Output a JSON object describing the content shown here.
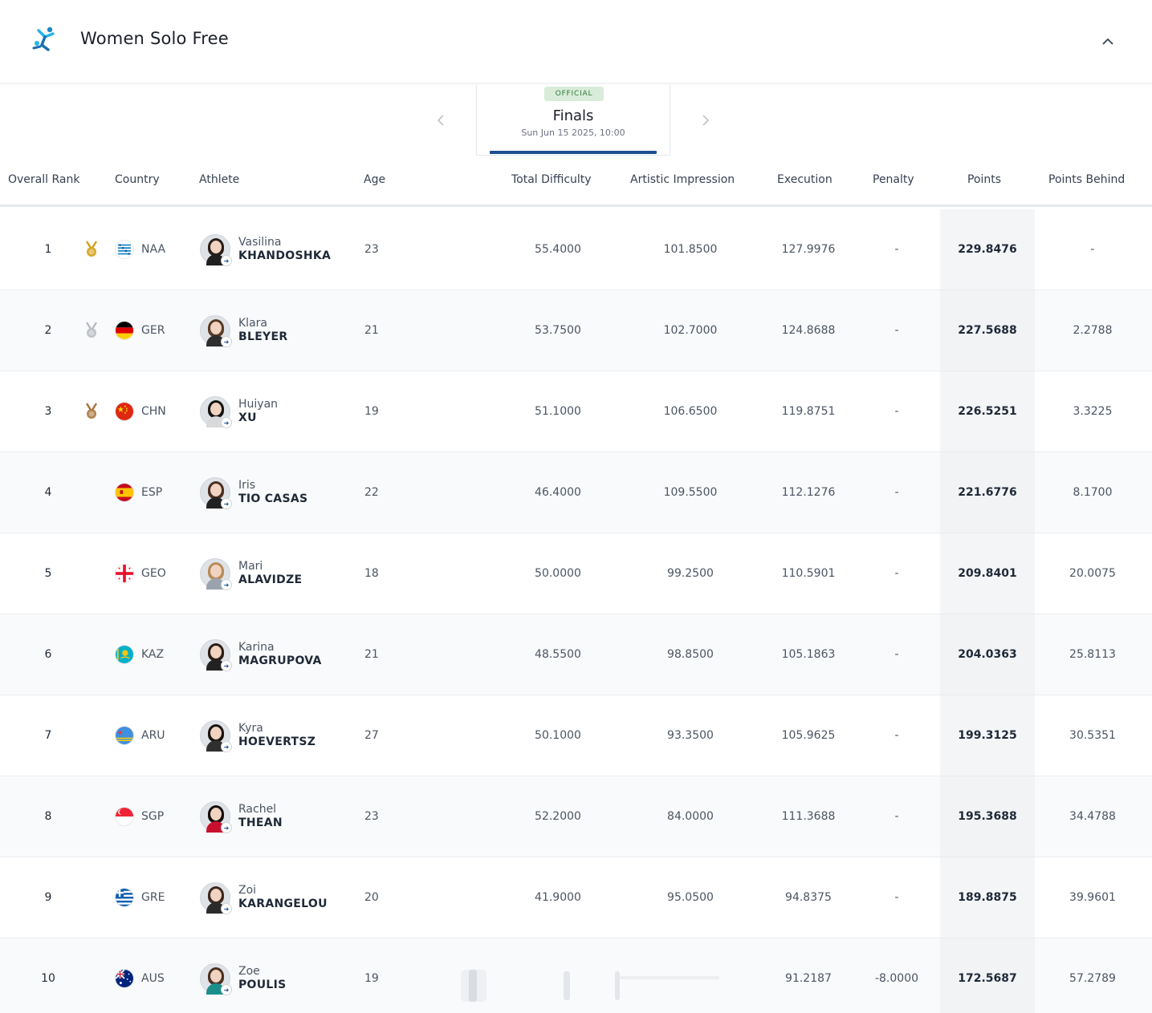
{
  "header": {
    "title": "Women Solo Free",
    "logo_icon": "artistic-swimming-logo-icon",
    "collapse_icon": "chevron-up-icon"
  },
  "round": {
    "status": "OFFICIAL",
    "name": "Finals",
    "date": "Sun Jun 15 2025, 10:00"
  },
  "columns": {
    "rank": "Overall Rank",
    "country": "Country",
    "athlete": "Athlete",
    "age": "Age",
    "difficulty": "Total Difficulty",
    "artistic": "Artistic Impression",
    "execution": "Execution",
    "penalty": "Penalty",
    "points": "Points",
    "behind": "Points Behind"
  },
  "rows": [
    {
      "rank": "1",
      "medal": "gold",
      "noc": "NAA",
      "first": "Vasilina",
      "last": "KHANDOSHKA",
      "age": "23",
      "difficulty": "55.4000",
      "artistic": "101.8500",
      "execution": "127.9976",
      "penalty": "-",
      "points": "229.8476",
      "behind": "-"
    },
    {
      "rank": "2",
      "medal": "silver",
      "noc": "GER",
      "first": "Klara",
      "last": "BLEYER",
      "age": "21",
      "difficulty": "53.7500",
      "artistic": "102.7000",
      "execution": "124.8688",
      "penalty": "-",
      "points": "227.5688",
      "behind": "2.2788"
    },
    {
      "rank": "3",
      "medal": "bronze",
      "noc": "CHN",
      "first": "Huiyan",
      "last": "XU",
      "age": "19",
      "difficulty": "51.1000",
      "artistic": "106.6500",
      "execution": "119.8751",
      "penalty": "-",
      "points": "226.5251",
      "behind": "3.3225"
    },
    {
      "rank": "4",
      "medal": "",
      "noc": "ESP",
      "first": "Iris",
      "last": "TIO CASAS",
      "age": "22",
      "difficulty": "46.4000",
      "artistic": "109.5500",
      "execution": "112.1276",
      "penalty": "-",
      "points": "221.6776",
      "behind": "8.1700"
    },
    {
      "rank": "5",
      "medal": "",
      "noc": "GEO",
      "first": "Mari",
      "last": "ALAVIDZE",
      "age": "18",
      "difficulty": "50.0000",
      "artistic": "99.2500",
      "execution": "110.5901",
      "penalty": "-",
      "points": "209.8401",
      "behind": "20.0075"
    },
    {
      "rank": "6",
      "medal": "",
      "noc": "KAZ",
      "first": "Karina",
      "last": "MAGRUPOVA",
      "age": "21",
      "difficulty": "48.5500",
      "artistic": "98.8500",
      "execution": "105.1863",
      "penalty": "-",
      "points": "204.0363",
      "behind": "25.8113"
    },
    {
      "rank": "7",
      "medal": "",
      "noc": "ARU",
      "first": "Kyra",
      "last": "HOEVERTSZ",
      "age": "27",
      "difficulty": "50.1000",
      "artistic": "93.3500",
      "execution": "105.9625",
      "penalty": "-",
      "points": "199.3125",
      "behind": "30.5351"
    },
    {
      "rank": "8",
      "medal": "",
      "noc": "SGP",
      "first": "Rachel",
      "last": "THEAN",
      "age": "23",
      "difficulty": "52.2000",
      "artistic": "84.0000",
      "execution": "111.3688",
      "penalty": "-",
      "points": "195.3688",
      "behind": "34.4788"
    },
    {
      "rank": "9",
      "medal": "",
      "noc": "GRE",
      "first": "Zoi",
      "last": "KARANGELOU",
      "age": "20",
      "difficulty": "41.9000",
      "artistic": "95.0500",
      "execution": "94.8375",
      "penalty": "-",
      "points": "189.8875",
      "behind": "39.9601"
    },
    {
      "rank": "10",
      "medal": "",
      "noc": "AUS",
      "first": "Zoe",
      "last": "POULIS",
      "age": "19",
      "difficulty": "",
      "artistic": "",
      "execution": "91.2187",
      "penalty": "-8.0000",
      "points": "172.5687",
      "behind": "57.2789"
    }
  ],
  "colors": {
    "accent": "#1d4f91",
    "official_bg": "#d8ecd9",
    "official_text": "#2f7b3a",
    "gold": "#d4a017",
    "silver": "#b8bcc2",
    "bronze": "#a8763e"
  }
}
